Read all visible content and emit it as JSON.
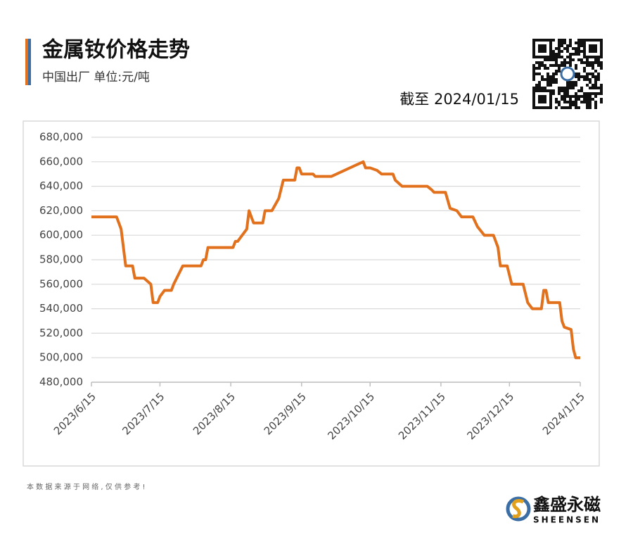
{
  "chart_data": {
    "type": "line",
    "title": "金属钕价格走势",
    "subtitle": "中国出厂  单位:元/吨",
    "as_of": "截至 2024/01/15",
    "footnote": "本 数 据 来 源 于 网 络 , 仅 供 参 考 !",
    "brand": "鑫盛永磁",
    "brand_en": "SHEENSEN",
    "x": [
      "2023/6/15",
      "2023/6/26",
      "2023/6/28",
      "2023/6/30",
      "2023/7/3",
      "2023/7/4",
      "2023/7/8",
      "2023/7/11",
      "2023/7/12",
      "2023/7/14",
      "2023/7/15",
      "2023/7/17",
      "2023/7/20",
      "2023/7/21",
      "2023/7/25",
      "2023/8/2",
      "2023/8/3",
      "2023/8/4",
      "2023/8/5",
      "2023/8/16",
      "2023/8/17",
      "2023/8/18",
      "2023/8/20",
      "2023/8/22",
      "2023/8/23",
      "2023/8/25",
      "2023/8/29",
      "2023/8/30",
      "2023/9/2",
      "2023/9/5",
      "2023/9/7",
      "2023/9/12",
      "2023/9/13",
      "2023/9/14",
      "2023/9/15",
      "2023/9/20",
      "2023/9/21",
      "2023/9/28",
      "2023/10/12",
      "2023/10/13",
      "2023/10/15",
      "2023/10/18",
      "2023/10/20",
      "2023/10/25",
      "2023/10/26",
      "2023/10/29",
      "2023/11/9",
      "2023/11/11",
      "2023/11/12",
      "2023/11/17",
      "2023/11/19",
      "2023/11/22",
      "2023/11/24",
      "2023/11/29",
      "2023/12/1",
      "2023/12/4",
      "2023/12/8",
      "2023/12/10",
      "2023/12/11",
      "2023/12/14",
      "2023/12/16",
      "2023/12/21",
      "2023/12/23",
      "2023/12/25",
      "2023/12/29",
      "2023/12/30",
      "2023/12/31",
      "2024/1/1",
      "2024/1/6",
      "2024/1/7",
      "2024/1/8",
      "2024/1/11",
      "2024/1/12",
      "2024/1/13",
      "2024/1/15"
    ],
    "series": [
      {
        "name": "金属钕",
        "color": "#e2711d",
        "values": [
          615000,
          615000,
          605000,
          575000,
          575000,
          565000,
          565000,
          560000,
          545000,
          545000,
          550000,
          555000,
          555000,
          560000,
          575000,
          575000,
          580000,
          580000,
          590000,
          590000,
          595000,
          595000,
          600000,
          605000,
          620000,
          610000,
          610000,
          620000,
          620000,
          630000,
          645000,
          645000,
          655000,
          655000,
          650000,
          650000,
          648000,
          648000,
          660000,
          655000,
          655000,
          653000,
          650000,
          650000,
          645000,
          640000,
          640000,
          637000,
          635000,
          635000,
          622000,
          620000,
          615000,
          615000,
          607000,
          600000,
          600000,
          590000,
          575000,
          575000,
          560000,
          560000,
          545000,
          540000,
          540000,
          555000,
          555000,
          545000,
          545000,
          530000,
          525000,
          523000,
          507000,
          500000,
          500000
        ]
      }
    ],
    "xlim": [
      "2023/6/15",
      "2024/1/15"
    ],
    "xticks": [
      "2023/6/15",
      "2023/7/15",
      "2023/8/15",
      "2023/9/15",
      "2023/10/15",
      "2023/11/15",
      "2023/12/15",
      "2024/1/15"
    ],
    "ylim": [
      480000,
      680000
    ],
    "yticks": [
      {
        "value": 480000,
        "label": "480,000"
      },
      {
        "value": 500000,
        "label": "500,000"
      },
      {
        "value": 520000,
        "label": "520,000"
      },
      {
        "value": 540000,
        "label": "540,000"
      },
      {
        "value": 560000,
        "label": "560,000"
      },
      {
        "value": 580000,
        "label": "580,000"
      },
      {
        "value": 600000,
        "label": "600,000"
      },
      {
        "value": 620000,
        "label": "620,000"
      },
      {
        "value": 640000,
        "label": "640,000"
      },
      {
        "value": 660000,
        "label": "660,000"
      },
      {
        "value": 680000,
        "label": "680,000"
      }
    ],
    "grid": true
  }
}
